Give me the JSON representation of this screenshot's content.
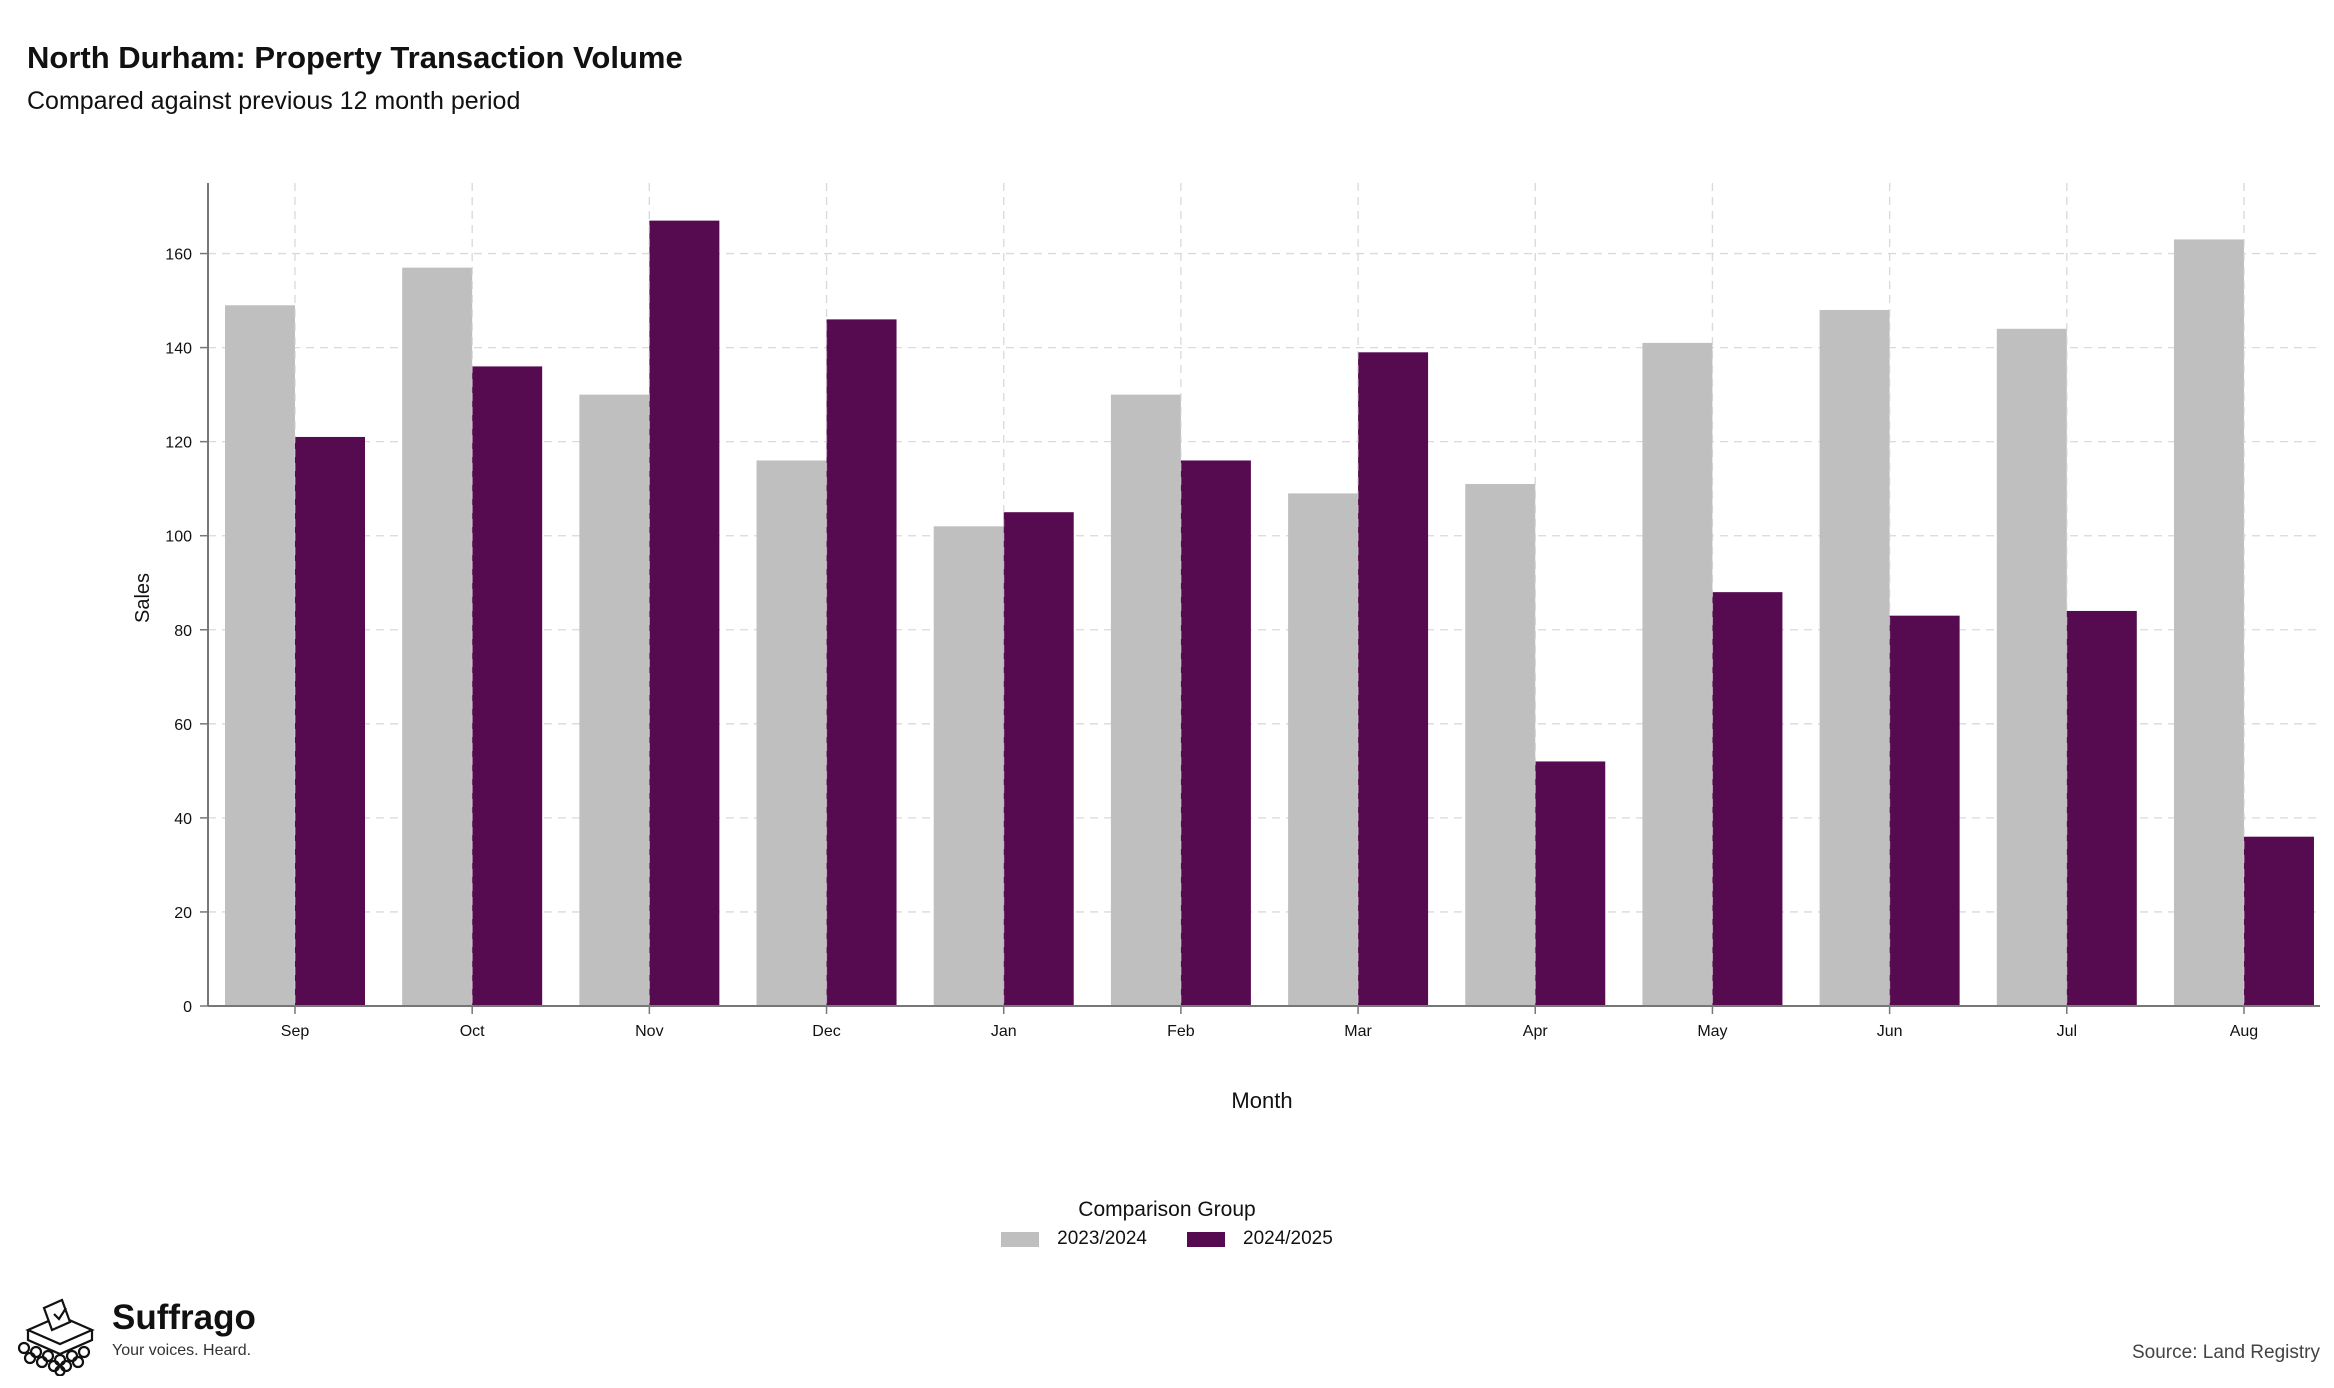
{
  "title": "North Durham: Property Transaction Volume",
  "subtitle": "Compared against previous 12 month period",
  "chart_data": {
    "type": "bar",
    "categories": [
      "Sep",
      "Oct",
      "Nov",
      "Dec",
      "Jan",
      "Feb",
      "Mar",
      "Apr",
      "May",
      "Jun",
      "Jul",
      "Aug"
    ],
    "series": [
      {
        "name": "2023/2024",
        "color": "#bfbfbf",
        "values": [
          149,
          157,
          130,
          116,
          102,
          130,
          109,
          111,
          141,
          148,
          144,
          163
        ]
      },
      {
        "name": "2024/2025",
        "color": "#560a50",
        "values": [
          121,
          136,
          167,
          146,
          105,
          116,
          139,
          52,
          88,
          83,
          84,
          36
        ]
      }
    ],
    "xlabel": "Month",
    "ylabel": "Sales",
    "ylim": [
      0,
      175
    ],
    "yticks": [
      0,
      20,
      40,
      60,
      80,
      100,
      120,
      140,
      160
    ],
    "grid": true,
    "legend_title": "Comparison Group",
    "legend_position": "bottom"
  },
  "branding": {
    "name": "Suffrago",
    "tagline": "Your voices. Heard.",
    "logo_icon": "ballot-box-icon"
  },
  "source": "Source: Land Registry"
}
